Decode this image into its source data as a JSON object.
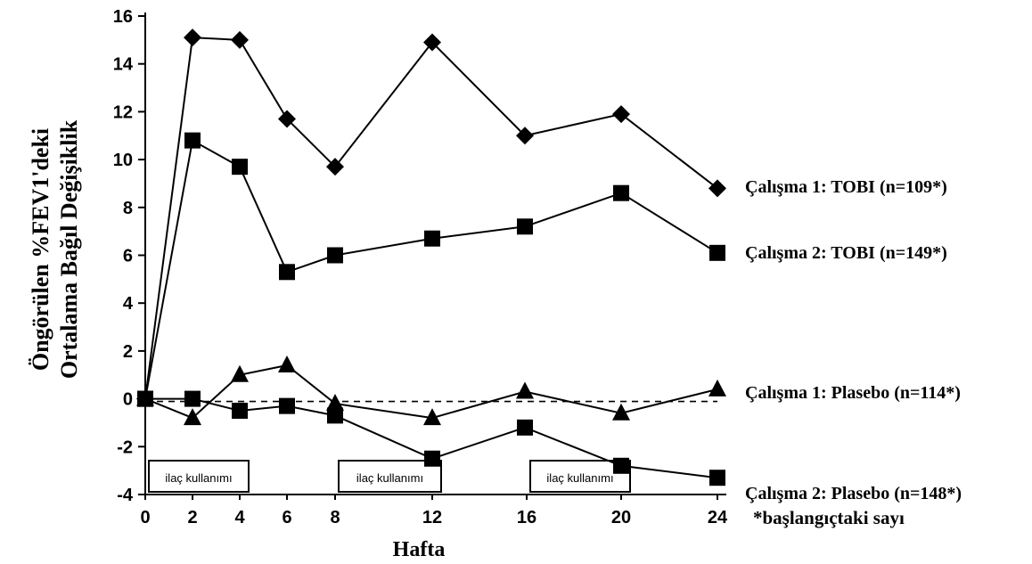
{
  "chart_data": {
    "type": "line",
    "ylabel_line1": "Öngörülen %FEV1'deki",
    "ylabel_line2": "Ortalama Bağıl Değişiklik",
    "xlabel": "Hafta",
    "ylim": [
      -4,
      16
    ],
    "yticks": [
      -4,
      -2,
      0,
      2,
      4,
      6,
      8,
      10,
      12,
      14,
      16
    ],
    "xtick_labels": [
      "0",
      "2",
      "4",
      "6",
      "8",
      "12",
      "16",
      "20",
      "24"
    ],
    "grid": false,
    "reference_line": {
      "y": 0,
      "style": "dashed"
    },
    "series": [
      {
        "name": "Çalışma 1: TOBI (n=109*)",
        "marker": "diamond",
        "x": [
          0,
          2,
          4,
          6,
          8,
          12,
          16,
          20,
          24
        ],
        "y": [
          0,
          15.1,
          15.0,
          11.7,
          9.7,
          14.9,
          11.0,
          11.9,
          8.8
        ]
      },
      {
        "name": "Çalışma 2: TOBI (n=149*)",
        "marker": "square",
        "x": [
          0,
          2,
          4,
          6,
          8,
          12,
          16,
          20,
          24
        ],
        "y": [
          0,
          10.8,
          9.7,
          5.3,
          6.0,
          6.7,
          7.2,
          8.6,
          6.1
        ]
      },
      {
        "name": "Çalışma 1: Plasebo (n=114*)",
        "marker": "triangle",
        "x": [
          0,
          2,
          4,
          6,
          8,
          12,
          16,
          20,
          24
        ],
        "y": [
          0,
          -0.8,
          1.0,
          1.4,
          -0.2,
          -0.8,
          0.3,
          -0.6,
          0.4
        ]
      },
      {
        "name": "Çalışma 2: Plasebo (n=148*)",
        "marker": "square",
        "x": [
          0,
          2,
          4,
          6,
          8,
          12,
          16,
          20,
          24
        ],
        "y": [
          0,
          0,
          -0.5,
          -0.3,
          -0.7,
          -2.5,
          -1.2,
          -2.8,
          -3.3
        ]
      }
    ],
    "drug_periods": [
      {
        "label": "ilaç kullanımı",
        "start": 0,
        "end": 4
      },
      {
        "label": "ilaç kullanımı",
        "start": 8,
        "end": 12
      },
      {
        "label": "ilaç kullanımı",
        "start": 16,
        "end": 20
      }
    ],
    "footnote": "*başlangıçtaki sayı"
  }
}
